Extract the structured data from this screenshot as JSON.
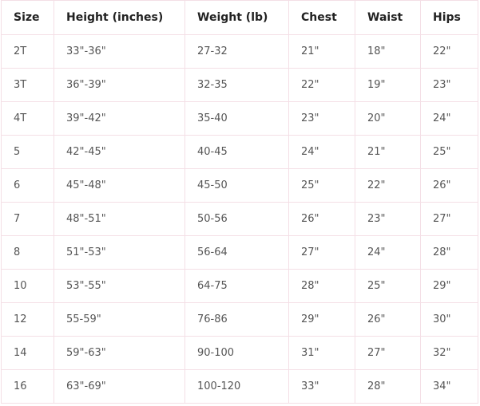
{
  "table": {
    "headers": [
      "Size",
      "Height (inches)",
      "Weight (lb)",
      "Chest",
      "Waist",
      "Hips"
    ],
    "rows": [
      [
        "2T",
        "33\"-36\"",
        "27-32",
        "21\"",
        "18\"",
        "22\""
      ],
      [
        "3T",
        "36\"-39\"",
        "32-35",
        "22\"",
        "19\"",
        "23\""
      ],
      [
        "4T",
        "39\"-42\"",
        "35-40",
        "23\"",
        "20\"",
        "24\""
      ],
      [
        "5",
        "42\"-45\"",
        "40-45",
        "24\"",
        "21\"",
        "25\""
      ],
      [
        "6",
        "45\"-48\"",
        "45-50",
        "25\"",
        "22\"",
        "26\""
      ],
      [
        "7",
        "48\"-51\"",
        "50-56",
        "26\"",
        "23\"",
        "27\""
      ],
      [
        "8",
        "51\"-53\"",
        "56-64",
        "27\"",
        "24\"",
        "28\""
      ],
      [
        "10",
        "53\"-55\"",
        "64-75",
        "28\"",
        "25\"",
        "29\""
      ],
      [
        "12",
        "55-59\"",
        "76-86",
        "29\"",
        "26\"",
        "30\""
      ],
      [
        "14",
        "59\"-63\"",
        "90-100",
        "31\"",
        "27\"",
        "32\""
      ],
      [
        "16",
        "63\"-69\"",
        "100-120",
        "33\"",
        "28\"",
        "34\""
      ]
    ]
  }
}
